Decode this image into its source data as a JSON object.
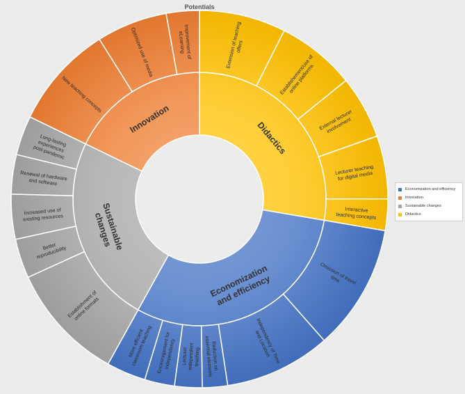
{
  "chart_data": {
    "type": "sunburst",
    "title": "Potentials",
    "legend_position": "right",
    "categories": [
      {
        "name": "Didactics",
        "color": "#ffc000",
        "children": [
          {
            "label": "Extension of teaching offers",
            "value": 1.1
          },
          {
            "label": "Establishement/use of online platforms",
            "value": 1.0
          },
          {
            "label": "External lecturer involvement",
            "value": 0.8
          },
          {
            "label": "Lecturer teaching for digital media",
            "value": 0.8
          },
          {
            "label": "Interactive teaching concepts",
            "value": 0.4
          }
        ]
      },
      {
        "name": "Economization and efficiency",
        "color": "#4472c4",
        "children": [
          {
            "label": "Omission of travel time",
            "value": 1.6
          },
          {
            "label": "Independency of Time and Location",
            "value": 1.35
          },
          {
            "label": "Reduction on essential elements",
            "value": 0.32
          },
          {
            "label": "Lecturer independent teaching",
            "value": 0.35
          },
          {
            "label": "Encouragement for independency",
            "value": 0.38
          },
          {
            "label": "More efficient classroom teaching",
            "value": 0.5
          }
        ]
      },
      {
        "name": "Sustainable changes",
        "color": "#a5a5a5",
        "children": [
          {
            "label": "Establishment of online formats",
            "value": 1.5
          },
          {
            "label": "Better reproducibility",
            "value": 0.5
          },
          {
            "label": "Increased use of existing resources",
            "value": 0.57
          },
          {
            "label": "Renewal of hardware and software",
            "value": 0.5
          },
          {
            "label": "Long-lasting experiences post-pandemic",
            "value": 0.5
          }
        ]
      },
      {
        "name": "Innovation",
        "color": "#ed7d31",
        "children": [
          {
            "label": "New teaching concepts",
            "value": 1.32
          },
          {
            "label": "Optimized use of media",
            "value": 0.9
          },
          {
            "label": "Improvement of eLearning",
            "value": 0.42
          }
        ]
      }
    ],
    "legend": [
      "Economization and efficiency",
      "Innovation",
      "Sustainable changes",
      "Didactics"
    ]
  }
}
